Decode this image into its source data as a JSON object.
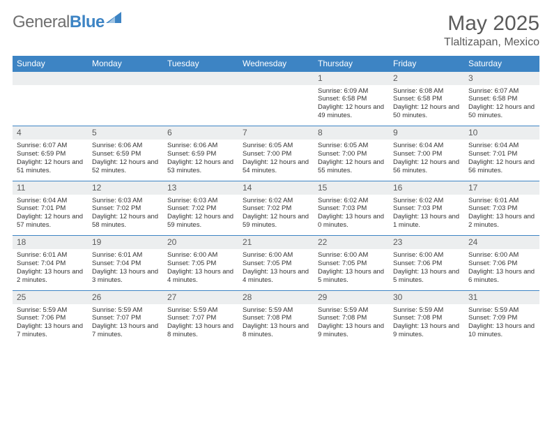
{
  "logo": {
    "text1": "General",
    "text2": "Blue",
    "gray": "#6f6f6f",
    "blue": "#3d84c4"
  },
  "header": {
    "month": "May 2025",
    "location": "Tlaltizapan, Mexico"
  },
  "colors": {
    "header_bg": "#3d84c4",
    "header_text": "#ffffff",
    "daynum_bg": "#eceeef",
    "daynum_text": "#5b5b5b",
    "body_text": "#333333",
    "row_border": "#3d84c4",
    "page_bg": "#ffffff"
  },
  "typography": {
    "title_fontsize": 30,
    "loc_fontsize": 16,
    "dayheader_fontsize": 12,
    "daynum_fontsize": 12,
    "cell_fontsize": 9.5
  },
  "calendar": {
    "type": "table",
    "columns": [
      "Sunday",
      "Monday",
      "Tuesday",
      "Wednesday",
      "Thursday",
      "Friday",
      "Saturday"
    ],
    "weeks": [
      [
        null,
        null,
        null,
        null,
        {
          "n": "1",
          "sr": "Sunrise: 6:09 AM",
          "ss": "Sunset: 6:58 PM",
          "dl": "Daylight: 12 hours and 49 minutes."
        },
        {
          "n": "2",
          "sr": "Sunrise: 6:08 AM",
          "ss": "Sunset: 6:58 PM",
          "dl": "Daylight: 12 hours and 50 minutes."
        },
        {
          "n": "3",
          "sr": "Sunrise: 6:07 AM",
          "ss": "Sunset: 6:58 PM",
          "dl": "Daylight: 12 hours and 50 minutes."
        }
      ],
      [
        {
          "n": "4",
          "sr": "Sunrise: 6:07 AM",
          "ss": "Sunset: 6:59 PM",
          "dl": "Daylight: 12 hours and 51 minutes."
        },
        {
          "n": "5",
          "sr": "Sunrise: 6:06 AM",
          "ss": "Sunset: 6:59 PM",
          "dl": "Daylight: 12 hours and 52 minutes."
        },
        {
          "n": "6",
          "sr": "Sunrise: 6:06 AM",
          "ss": "Sunset: 6:59 PM",
          "dl": "Daylight: 12 hours and 53 minutes."
        },
        {
          "n": "7",
          "sr": "Sunrise: 6:05 AM",
          "ss": "Sunset: 7:00 PM",
          "dl": "Daylight: 12 hours and 54 minutes."
        },
        {
          "n": "8",
          "sr": "Sunrise: 6:05 AM",
          "ss": "Sunset: 7:00 PM",
          "dl": "Daylight: 12 hours and 55 minutes."
        },
        {
          "n": "9",
          "sr": "Sunrise: 6:04 AM",
          "ss": "Sunset: 7:00 PM",
          "dl": "Daylight: 12 hours and 56 minutes."
        },
        {
          "n": "10",
          "sr": "Sunrise: 6:04 AM",
          "ss": "Sunset: 7:01 PM",
          "dl": "Daylight: 12 hours and 56 minutes."
        }
      ],
      [
        {
          "n": "11",
          "sr": "Sunrise: 6:04 AM",
          "ss": "Sunset: 7:01 PM",
          "dl": "Daylight: 12 hours and 57 minutes."
        },
        {
          "n": "12",
          "sr": "Sunrise: 6:03 AM",
          "ss": "Sunset: 7:02 PM",
          "dl": "Daylight: 12 hours and 58 minutes."
        },
        {
          "n": "13",
          "sr": "Sunrise: 6:03 AM",
          "ss": "Sunset: 7:02 PM",
          "dl": "Daylight: 12 hours and 59 minutes."
        },
        {
          "n": "14",
          "sr": "Sunrise: 6:02 AM",
          "ss": "Sunset: 7:02 PM",
          "dl": "Daylight: 12 hours and 59 minutes."
        },
        {
          "n": "15",
          "sr": "Sunrise: 6:02 AM",
          "ss": "Sunset: 7:03 PM",
          "dl": "Daylight: 13 hours and 0 minutes."
        },
        {
          "n": "16",
          "sr": "Sunrise: 6:02 AM",
          "ss": "Sunset: 7:03 PM",
          "dl": "Daylight: 13 hours and 1 minute."
        },
        {
          "n": "17",
          "sr": "Sunrise: 6:01 AM",
          "ss": "Sunset: 7:03 PM",
          "dl": "Daylight: 13 hours and 2 minutes."
        }
      ],
      [
        {
          "n": "18",
          "sr": "Sunrise: 6:01 AM",
          "ss": "Sunset: 7:04 PM",
          "dl": "Daylight: 13 hours and 2 minutes."
        },
        {
          "n": "19",
          "sr": "Sunrise: 6:01 AM",
          "ss": "Sunset: 7:04 PM",
          "dl": "Daylight: 13 hours and 3 minutes."
        },
        {
          "n": "20",
          "sr": "Sunrise: 6:00 AM",
          "ss": "Sunset: 7:05 PM",
          "dl": "Daylight: 13 hours and 4 minutes."
        },
        {
          "n": "21",
          "sr": "Sunrise: 6:00 AM",
          "ss": "Sunset: 7:05 PM",
          "dl": "Daylight: 13 hours and 4 minutes."
        },
        {
          "n": "22",
          "sr": "Sunrise: 6:00 AM",
          "ss": "Sunset: 7:05 PM",
          "dl": "Daylight: 13 hours and 5 minutes."
        },
        {
          "n": "23",
          "sr": "Sunrise: 6:00 AM",
          "ss": "Sunset: 7:06 PM",
          "dl": "Daylight: 13 hours and 5 minutes."
        },
        {
          "n": "24",
          "sr": "Sunrise: 6:00 AM",
          "ss": "Sunset: 7:06 PM",
          "dl": "Daylight: 13 hours and 6 minutes."
        }
      ],
      [
        {
          "n": "25",
          "sr": "Sunrise: 5:59 AM",
          "ss": "Sunset: 7:06 PM",
          "dl": "Daylight: 13 hours and 7 minutes."
        },
        {
          "n": "26",
          "sr": "Sunrise: 5:59 AM",
          "ss": "Sunset: 7:07 PM",
          "dl": "Daylight: 13 hours and 7 minutes."
        },
        {
          "n": "27",
          "sr": "Sunrise: 5:59 AM",
          "ss": "Sunset: 7:07 PM",
          "dl": "Daylight: 13 hours and 8 minutes."
        },
        {
          "n": "28",
          "sr": "Sunrise: 5:59 AM",
          "ss": "Sunset: 7:08 PM",
          "dl": "Daylight: 13 hours and 8 minutes."
        },
        {
          "n": "29",
          "sr": "Sunrise: 5:59 AM",
          "ss": "Sunset: 7:08 PM",
          "dl": "Daylight: 13 hours and 9 minutes."
        },
        {
          "n": "30",
          "sr": "Sunrise: 5:59 AM",
          "ss": "Sunset: 7:08 PM",
          "dl": "Daylight: 13 hours and 9 minutes."
        },
        {
          "n": "31",
          "sr": "Sunrise: 5:59 AM",
          "ss": "Sunset: 7:09 PM",
          "dl": "Daylight: 13 hours and 10 minutes."
        }
      ]
    ]
  }
}
